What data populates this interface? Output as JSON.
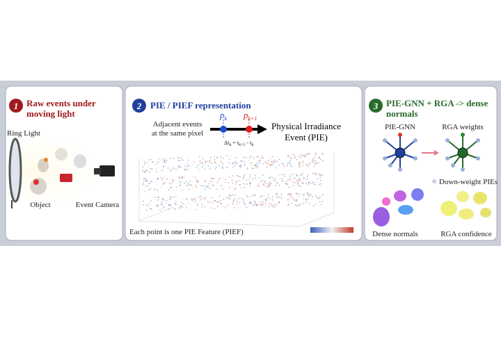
{
  "panel1": {
    "number": "1",
    "title_lines": [
      "Raw events under",
      "moving light"
    ],
    "ring_light": "Ring Light",
    "object": "Object",
    "event_camera": "Event Camera"
  },
  "panel2": {
    "number": "2",
    "title": "PIE / PIEF representation",
    "adjacent_lines": [
      "Adjacent events",
      "at the same pixel"
    ],
    "pk": {
      "base": "p",
      "sub": "k"
    },
    "pk1": {
      "base": "p",
      "sub": "k+1"
    },
    "delta": [
      "Δt",
      "k",
      " = t",
      "k+1",
      " - t",
      "k"
    ],
    "pie_lines": [
      "Physical Irradiance",
      "Event (PIE)"
    ],
    "caption": "Each point is one PIE Feature (PIEF)"
  },
  "panel3": {
    "number": "3",
    "title_lines": [
      "PIE-GNN + RGA -> dense",
      "normals"
    ],
    "gnn": "PIE-GNN",
    "rga_weights": "RGA weights",
    "down_weight": "Down-weight PIEs",
    "dense_normals": "Dense normals",
    "rga_confidence": "RGA confidence"
  }
}
